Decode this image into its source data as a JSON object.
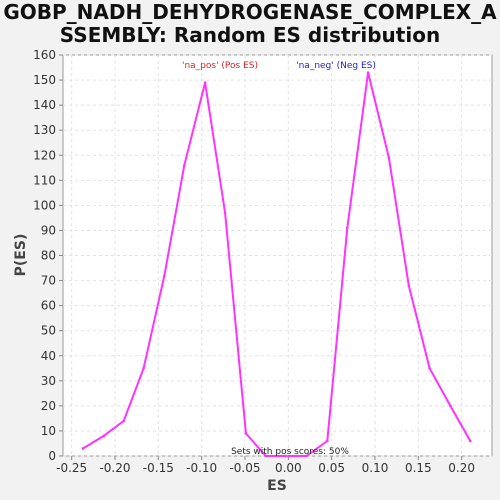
{
  "title_line1": "GOBP_NADH_DEHYDROGENASE_COMPLEX_A",
  "title_line2": "SSEMBLY: Random ES distribution",
  "chart_data": {
    "type": "line",
    "xlabel": "ES",
    "ylabel": "P(ES)",
    "xlim": [
      -0.26,
      0.235
    ],
    "ylim": [
      0,
      160
    ],
    "x_ticks": [
      "-0.25",
      "-0.20",
      "-0.15",
      "-0.10",
      "-0.05",
      "0.00",
      "0.05",
      "0.10",
      "0.15",
      "0.20"
    ],
    "y_ticks": [
      "0",
      "10",
      "20",
      "30",
      "40",
      "50",
      "60",
      "70",
      "80",
      "90",
      "100",
      "110",
      "120",
      "130",
      "140",
      "150",
      "160"
    ],
    "grid": true,
    "series": [
      {
        "name": "'na_pos' (Pos ES)",
        "color": "#ff33ff",
        "x": [
          -0.237,
          -0.213,
          -0.19,
          -0.167,
          -0.143,
          -0.12,
          -0.096,
          -0.073,
          -0.049,
          -0.026,
          -0.003
        ],
        "y": [
          3,
          8,
          14,
          35,
          72,
          116,
          149,
          97,
          9,
          0,
          0
        ]
      },
      {
        "name": "'na_neg' (Neg ES)",
        "color": "#ff33ff",
        "x": [
          0.0,
          0.021,
          0.045,
          0.068,
          0.092,
          0.116,
          0.139,
          0.163,
          0.187,
          0.21
        ],
        "y": [
          0,
          0,
          6,
          91,
          153,
          119,
          68,
          35,
          20,
          6
        ]
      }
    ],
    "legend": [
      {
        "label": "'na_pos' (Pos ES)",
        "color": "#dd2222"
      },
      {
        "label": "'na_neg' (Neg ES)",
        "color": "#2222cc"
      }
    ],
    "annotation": "Sets with pos scores: 50%"
  }
}
